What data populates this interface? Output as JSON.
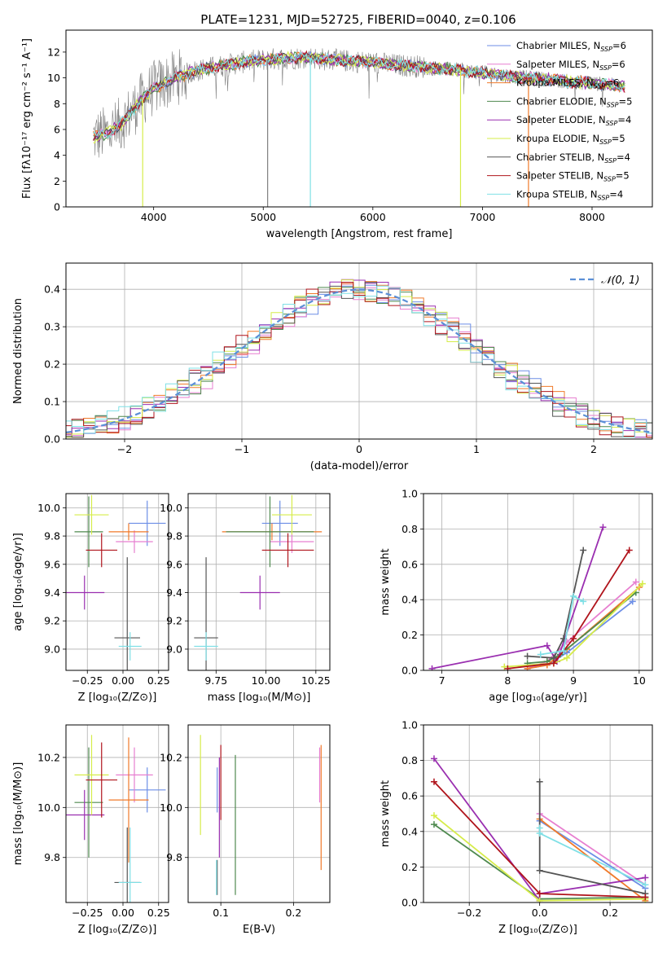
{
  "figure_title": "PLATE=1231, MJD=52725, FIBERID=0040, z=0.106",
  "colors": {
    "Chabrier MILES": "#6c8ee6",
    "Salpeter MILES": "#e77fd0",
    "Kroupa MILES": "#f07a2a",
    "Chabrier ELODIE": "#4f8a4f",
    "Salpeter ELODIE": "#9a2fb0",
    "Kroupa ELODIE": "#d6ec4a",
    "Chabrier STELIB": "#555555",
    "Salpeter STELIB": "#b0141c",
    "Kroupa STELIB": "#7fe0e6",
    "data": "#808080"
  },
  "chart_data": [
    {
      "id": "spectrum",
      "type": "line",
      "xlabel": "wavelength [Angstrom, rest frame]",
      "ylabel": "Flux [fλ10⁻¹⁷ erg cm⁻² s⁻¹ A⁻¹]",
      "xlim": [
        3200,
        8550
      ],
      "ylim": [
        0,
        13.7
      ],
      "xticks": [
        4000,
        5000,
        6000,
        7000,
        8000
      ],
      "yticks": [
        0,
        2,
        4,
        6,
        8,
        10,
        12
      ],
      "legend_position": "right",
      "legend": [
        {
          "model": "Chabrier MILES",
          "label": "Chabrier MILES, N",
          "sub": "SSP",
          "suffix": "=6"
        },
        {
          "model": "Salpeter MILES",
          "label": "Salpeter MILES, N",
          "sub": "SSP",
          "suffix": "=6"
        },
        {
          "model": "Kroupa MILES",
          "label": "Kroupa MILES, N",
          "sub": "SSP",
          "suffix": "=6"
        },
        {
          "model": "Chabrier ELODIE",
          "label": "Chabrier ELODIE, N",
          "sub": "SSP",
          "suffix": "=5"
        },
        {
          "model": "Salpeter ELODIE",
          "label": "Salpeter ELODIE, N",
          "sub": "SSP",
          "suffix": "=4"
        },
        {
          "model": "Kroupa ELODIE",
          "label": "Kroupa ELODIE, N",
          "sub": "SSP",
          "suffix": "=5"
        },
        {
          "model": "Chabrier STELIB",
          "label": "Chabrier STELIB, N",
          "sub": "SSP",
          "suffix": "=4"
        },
        {
          "model": "Salpeter STELIB",
          "label": "Salpeter STELIB, N",
          "sub": "SSP",
          "suffix": "=5"
        },
        {
          "model": "Kroupa STELIB",
          "label": "Kroupa STELIB, N",
          "sub": "SSP",
          "suffix": "=4"
        }
      ],
      "continuum": {
        "wavelength": [
          3450,
          3600,
          3700,
          3800,
          3900,
          4000,
          4100,
          4200,
          4400,
          4600,
          4800,
          5000,
          5200,
          5400,
          5600,
          5800,
          6000,
          6200,
          6400,
          6600,
          6800,
          7000,
          7200,
          7400,
          7600,
          7800,
          8000,
          8200,
          8300
        ],
        "flux": [
          5.4,
          5.8,
          6.4,
          7.4,
          8.4,
          9.2,
          9.6,
          10.0,
          10.6,
          10.9,
          11.2,
          11.4,
          11.5,
          11.6,
          11.4,
          11.3,
          11.2,
          11.0,
          10.9,
          10.7,
          10.6,
          10.4,
          10.2,
          10.0,
          9.9,
          9.7,
          9.6,
          9.4,
          9.3
        ]
      },
      "dropouts": [
        {
          "wavelength": 3900,
          "model": "Kroupa ELODIE"
        },
        {
          "wavelength": 5430,
          "model": "Kroupa STELIB"
        },
        {
          "wavelength": 6800,
          "model": "Kroupa ELODIE"
        },
        {
          "wavelength": 7420,
          "model": "Kroupa MILES"
        },
        {
          "wavelength": 5040,
          "model": "data"
        }
      ]
    },
    {
      "id": "residuals",
      "type": "histogram",
      "xlabel": "(data-model)/error",
      "ylabel": "Normed distribution",
      "xlim": [
        -2.5,
        2.5
      ],
      "ylim": [
        0,
        0.47
      ],
      "xticks": [
        -2,
        -1,
        0,
        1,
        2
      ],
      "yticks": [
        0.0,
        0.1,
        0.2,
        0.3,
        0.4
      ],
      "bin_width": 0.1,
      "reference_curve": {
        "label": "𝒩(0, 1)",
        "mean": 0,
        "sigma": 1,
        "color": "#5b8fd6",
        "dashed": true
      },
      "legend_position": "top-right"
    },
    {
      "id": "age_vs_Z",
      "type": "errorbar",
      "xlabel": "Z [log₁₀(Z/Z⊙)]",
      "ylabel": "age  [log₁₀(age/yr)]",
      "xlim": [
        -0.4,
        0.32
      ],
      "ylim": [
        8.85,
        10.1
      ],
      "xticks": [
        -0.25,
        0.0,
        0.25
      ],
      "yticks": [
        9.0,
        9.2,
        9.4,
        9.6,
        9.8,
        10.0
      ],
      "points": [
        {
          "model": "Chabrier MILES",
          "x": 0.17,
          "xerr": 0.13,
          "y": 9.89,
          "yerr": 0.16
        },
        {
          "model": "Salpeter MILES",
          "x": 0.08,
          "xerr": 0.13,
          "y": 9.76,
          "yerr": 0.08
        },
        {
          "model": "Kroupa MILES",
          "x": 0.04,
          "xerr": 0.14,
          "y": 9.83,
          "yerr": 0.06
        },
        {
          "model": "Chabrier ELODIE",
          "x": -0.24,
          "xerr": 0.1,
          "y": 9.83,
          "yerr": 0.25
        },
        {
          "model": "Salpeter ELODIE",
          "x": -0.27,
          "xerr": 0.14,
          "y": 9.4,
          "yerr": 0.12
        },
        {
          "model": "Kroupa ELODIE",
          "x": -0.22,
          "xerr": 0.12,
          "y": 9.95,
          "yerr": 0.14
        },
        {
          "model": "Chabrier STELIB",
          "x": 0.03,
          "xerr": 0.09,
          "y": 9.08,
          "yerr": 0.57
        },
        {
          "model": "Salpeter STELIB",
          "x": -0.15,
          "xerr": 0.11,
          "y": 9.7,
          "yerr": 0.12
        },
        {
          "model": "Kroupa STELIB",
          "x": 0.05,
          "xerr": 0.08,
          "y": 9.02,
          "yerr": 0.1
        }
      ]
    },
    {
      "id": "age_vs_mass",
      "type": "errorbar",
      "xlabel": "mass [log₁₀(M/M⊙)]",
      "ylabel": "",
      "xlim": [
        9.61,
        10.32
      ],
      "ylim": [
        8.85,
        10.1
      ],
      "xticks": [
        9.75,
        10.0,
        10.25
      ],
      "yticks": [
        9.0,
        9.2,
        9.4,
        9.6,
        9.8,
        10.0
      ],
      "points": [
        {
          "model": "Chabrier MILES",
          "x": 10.07,
          "xerr": 0.09,
          "y": 9.89,
          "yerr": 0.16
        },
        {
          "model": "Salpeter MILES",
          "x": 10.13,
          "xerr": 0.11,
          "y": 9.76,
          "yerr": 0.08
        },
        {
          "model": "Kroupa MILES",
          "x": 10.03,
          "xerr": 0.25,
          "y": 9.83,
          "yerr": 0.06
        },
        {
          "model": "Chabrier ELODIE",
          "x": 10.02,
          "xerr": 0.22,
          "y": 9.83,
          "yerr": 0.25
        },
        {
          "model": "Salpeter ELODIE",
          "x": 9.97,
          "xerr": 0.1,
          "y": 9.4,
          "yerr": 0.12
        },
        {
          "model": "Kroupa ELODIE",
          "x": 10.13,
          "xerr": 0.1,
          "y": 9.95,
          "yerr": 0.14
        },
        {
          "model": "Chabrier STELIB",
          "x": 9.7,
          "xerr": 0.06,
          "y": 9.08,
          "yerr": 0.57
        },
        {
          "model": "Salpeter STELIB",
          "x": 10.11,
          "xerr": 0.13,
          "y": 9.7,
          "yerr": 0.12
        },
        {
          "model": "Kroupa STELIB",
          "x": 9.7,
          "xerr": 0.06,
          "y": 9.02,
          "yerr": 0.1
        }
      ]
    },
    {
      "id": "weight_vs_age",
      "type": "line",
      "xlabel": "age  [log₁₀(age/yr)]",
      "ylabel": "mass weight",
      "xlim": [
        6.72,
        10.2
      ],
      "ylim": [
        0,
        1.0
      ],
      "xticks": [
        7,
        8,
        9,
        10
      ],
      "yticks": [
        0.0,
        0.2,
        0.4,
        0.6,
        0.8,
        1.0
      ],
      "series": [
        {
          "model": "Chabrier MILES",
          "x": [
            8.3,
            8.6,
            8.9,
            9.9
          ],
          "y": [
            0.01,
            0.03,
            0.1,
            0.39
          ]
        },
        {
          "model": "Salpeter MILES",
          "x": [
            8.3,
            8.6,
            8.9,
            9.95
          ],
          "y": [
            0.01,
            0.05,
            0.16,
            0.5
          ]
        },
        {
          "model": "Kroupa MILES",
          "x": [
            8.3,
            8.6,
            8.9,
            10.0
          ],
          "y": [
            0.01,
            0.03,
            0.12,
            0.47
          ]
        },
        {
          "model": "Chabrier ELODIE",
          "x": [
            8.3,
            8.6,
            8.8,
            9.95
          ],
          "y": [
            0.04,
            0.05,
            0.09,
            0.44
          ]
        },
        {
          "model": "Salpeter ELODIE",
          "x": [
            6.85,
            8.6,
            8.75,
            9.45
          ],
          "y": [
            0.01,
            0.14,
            0.05,
            0.81
          ]
        },
        {
          "model": "Kroupa ELODIE",
          "x": [
            7.95,
            8.7,
            8.9,
            10.05
          ],
          "y": [
            0.02,
            0.04,
            0.07,
            0.49
          ]
        },
        {
          "model": "Chabrier STELIB",
          "x": [
            8.3,
            8.7,
            8.85,
            9.15
          ],
          "y": [
            0.08,
            0.07,
            0.18,
            0.68
          ]
        },
        {
          "model": "Salpeter STELIB",
          "x": [
            8.0,
            8.7,
            9.0,
            9.85
          ],
          "y": [
            0.01,
            0.04,
            0.18,
            0.68
          ]
        },
        {
          "model": "Kroupa STELIB",
          "x": [
            8.5,
            8.85,
            9.0,
            9.15
          ],
          "y": [
            0.09,
            0.11,
            0.42,
            0.39
          ]
        }
      ]
    },
    {
      "id": "mass_vs_Z",
      "type": "errorbar",
      "xlabel": "Z [log₁₀(Z/Z⊙)]",
      "ylabel": "mass [log₁₀(M/M⊙)]",
      "xlim": [
        -0.4,
        0.32
      ],
      "ylim": [
        9.62,
        10.33
      ],
      "xticks": [
        -0.25,
        0.0,
        0.25
      ],
      "yticks": [
        9.8,
        10.0,
        10.2
      ],
      "points": [
        {
          "model": "Chabrier MILES",
          "x": 0.17,
          "xerr": 0.13,
          "y": 10.07,
          "yerr": 0.09
        },
        {
          "model": "Salpeter MILES",
          "x": 0.08,
          "xerr": 0.13,
          "y": 10.13,
          "yerr": 0.11
        },
        {
          "model": "Kroupa MILES",
          "x": 0.04,
          "xerr": 0.14,
          "y": 10.03,
          "yerr": 0.25
        },
        {
          "model": "Chabrier ELODIE",
          "x": -0.24,
          "xerr": 0.1,
          "y": 10.02,
          "yerr": 0.22
        },
        {
          "model": "Salpeter ELODIE",
          "x": -0.27,
          "xerr": 0.14,
          "y": 9.97,
          "yerr": 0.1
        },
        {
          "model": "Kroupa ELODIE",
          "x": -0.22,
          "xerr": 0.12,
          "y": 10.13,
          "yerr": 0.16
        },
        {
          "model": "Chabrier STELIB",
          "x": 0.03,
          "xerr": 0.09,
          "y": 9.7,
          "yerr": 0.22
        },
        {
          "model": "Salpeter STELIB",
          "x": -0.15,
          "xerr": 0.11,
          "y": 10.11,
          "yerr": 0.15
        },
        {
          "model": "Kroupa STELIB",
          "x": 0.05,
          "xerr": 0.08,
          "y": 9.7,
          "yerr": 0.22
        }
      ]
    },
    {
      "id": "mass_vs_ebv",
      "type": "errorbar",
      "xlabel": "E(B-V)",
      "ylabel": "",
      "xlim": [
        0.055,
        0.25
      ],
      "ylim": [
        9.62,
        10.33
      ],
      "xticks": [
        0.1,
        0.2
      ],
      "yticks": [
        9.8,
        10.0,
        10.2
      ],
      "points": [
        {
          "model": "Chabrier MILES",
          "x": 0.095,
          "xerr": 0,
          "y": 10.07,
          "yerr": 0.09
        },
        {
          "model": "Salpeter MILES",
          "x": 0.236,
          "xerr": 0,
          "y": 10.13,
          "yerr": 0.11
        },
        {
          "model": "Kroupa MILES",
          "x": 0.238,
          "xerr": 0,
          "y": 10.0,
          "yerr": 0.25
        },
        {
          "model": "Chabrier ELODIE",
          "x": 0.12,
          "xerr": 0,
          "y": 9.93,
          "yerr": 0.28
        },
        {
          "model": "Salpeter ELODIE",
          "x": 0.098,
          "xerr": 0,
          "y": 10.0,
          "yerr": 0.2
        },
        {
          "model": "Kroupa ELODIE",
          "x": 0.072,
          "xerr": 0,
          "y": 10.09,
          "yerr": 0.2
        },
        {
          "model": "Chabrier STELIB",
          "x": 0.095,
          "xerr": 0,
          "y": 9.72,
          "yerr": 0.07
        },
        {
          "model": "Salpeter STELIB",
          "x": 0.1,
          "xerr": 0,
          "y": 10.1,
          "yerr": 0.15
        },
        {
          "model": "Kroupa STELIB",
          "x": 0.094,
          "xerr": 0,
          "y": 9.72,
          "yerr": 0.07
        }
      ]
    },
    {
      "id": "weight_vs_Z",
      "type": "line",
      "xlabel": "Z [log₁₀(Z/Z⊙)]",
      "ylabel": "mass weight",
      "xlim": [
        -0.33,
        0.32
      ],
      "ylim": [
        0,
        1.0
      ],
      "xticks": [
        -0.2,
        0.0,
        0.2
      ],
      "yticks": [
        0.0,
        0.2,
        0.4,
        0.6,
        0.8,
        1.0
      ],
      "series": [
        {
          "model": "Chabrier MILES",
          "x": [
            0.0,
            0.3
          ],
          "y": [
            0.46,
            0.08
          ]
        },
        {
          "model": "Salpeter MILES",
          "x": [
            0.0,
            0.3
          ],
          "y": [
            0.5,
            0.1
          ]
        },
        {
          "model": "Kroupa MILES",
          "x": [
            0.0,
            0.3
          ],
          "y": [
            0.47,
            0.01
          ]
        },
        {
          "model": "Chabrier ELODIE",
          "x": [
            -0.3,
            0.0,
            0.3
          ],
          "y": [
            0.44,
            0.02,
            0.03
          ]
        },
        {
          "model": "Salpeter ELODIE",
          "x": [
            -0.3,
            0.0,
            0.0,
            0.3
          ],
          "y": [
            0.81,
            0.01,
            0.05,
            0.14
          ]
        },
        {
          "model": "Kroupa ELODIE",
          "x": [
            -0.3,
            0.0,
            0.3
          ],
          "y": [
            0.49,
            0.01,
            0.02
          ]
        },
        {
          "model": "Chabrier STELIB",
          "x": [
            0.0,
            0.0,
            0.3
          ],
          "y": [
            0.68,
            0.18,
            0.05
          ]
        },
        {
          "model": "Salpeter STELIB",
          "x": [
            -0.3,
            0.0,
            0.3
          ],
          "y": [
            0.68,
            0.05,
            0.03
          ]
        },
        {
          "model": "Kroupa STELIB",
          "x": [
            0.0,
            0.0,
            0.3
          ],
          "y": [
            0.42,
            0.39,
            0.1
          ]
        }
      ]
    }
  ]
}
